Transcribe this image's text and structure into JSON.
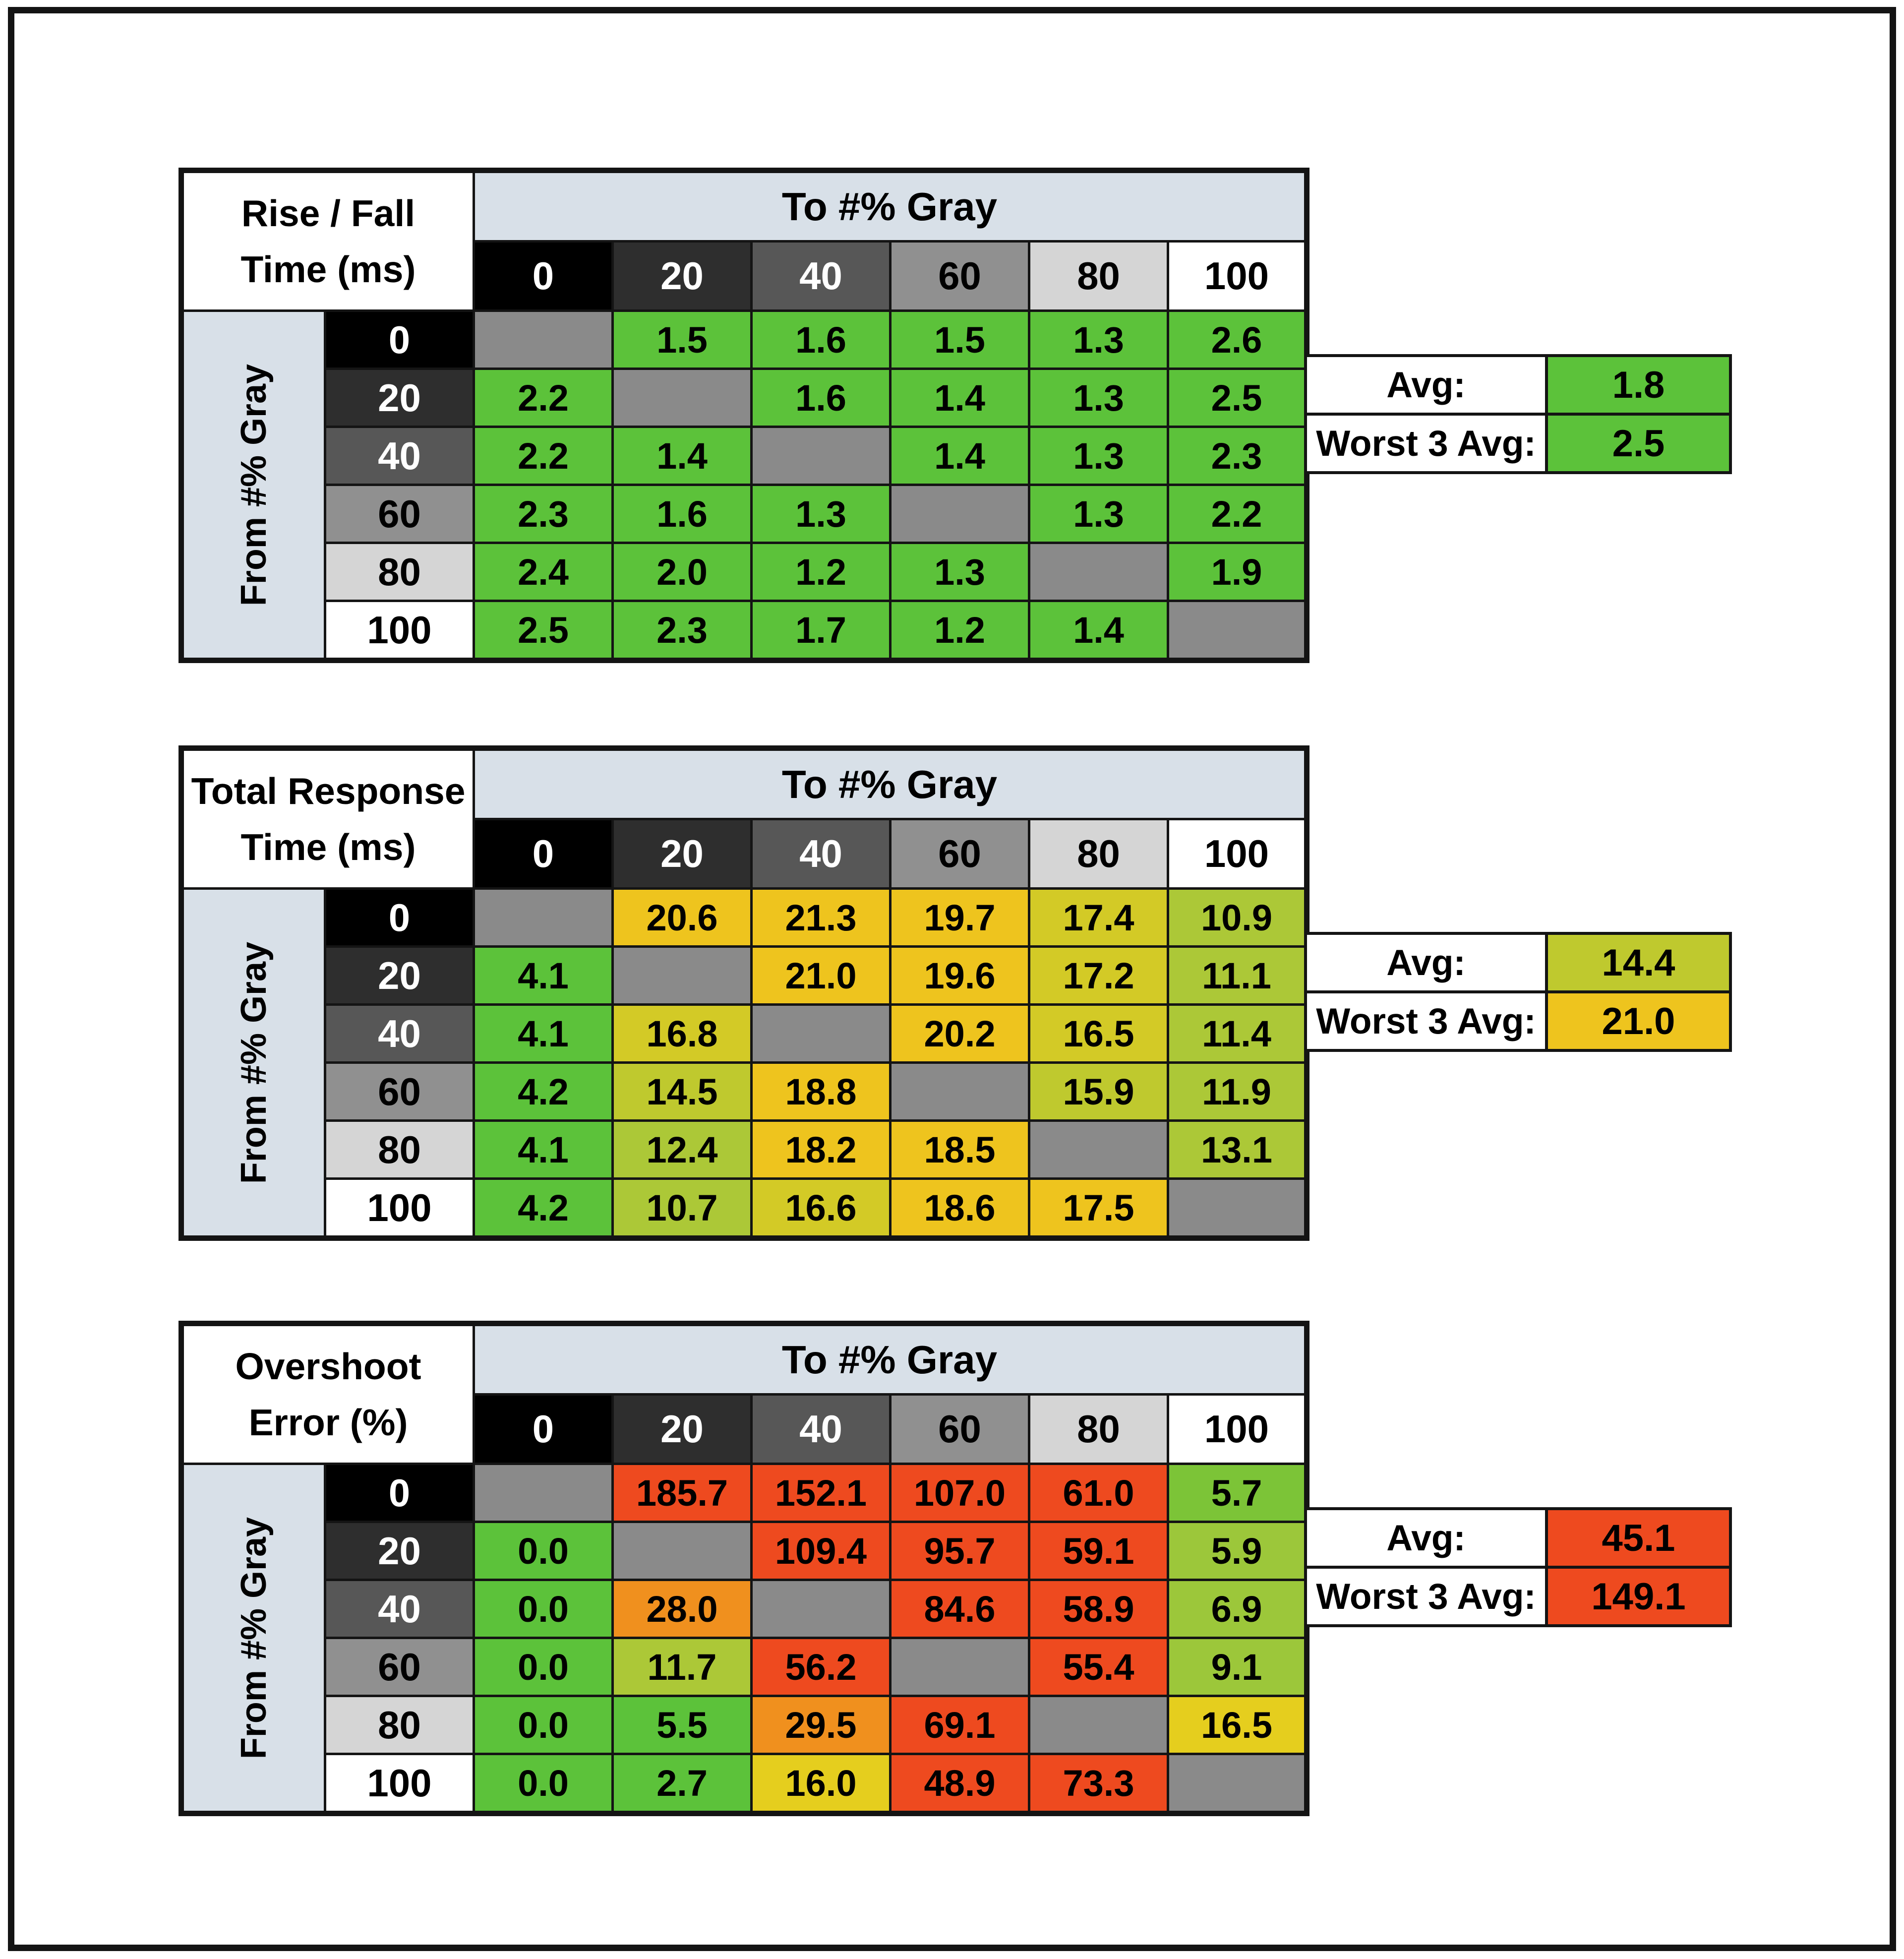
{
  "palette": {
    "green": "#5CC23A",
    "green_yellow": "#7CC437",
    "yellow_green": "#9CC73A",
    "lime": "#ACC837",
    "olive": "#BFC92E",
    "olive_yellow": "#D3CA26",
    "yellow": "#E5CE1E",
    "gold": "#EEC41E",
    "orange": "#F0901E",
    "red": "#EE4A1F",
    "gray": "#8A8A8A"
  },
  "frame_color": "#141414",
  "header_band_bg": "#D8E0E8",
  "gray_steps": [
    {
      "label": "0",
      "bg": "#000000",
      "fg": "#FFFFFF"
    },
    {
      "label": "20",
      "bg": "#2E2E2E",
      "fg": "#FFFFFF"
    },
    {
      "label": "40",
      "bg": "#575757",
      "fg": "#FFFFFF"
    },
    {
      "label": "60",
      "bg": "#909090",
      "fg": "#000000"
    },
    {
      "label": "80",
      "bg": "#D5D5D5",
      "fg": "#000000"
    },
    {
      "label": "100",
      "bg": "#FFFFFF",
      "fg": "#000000"
    }
  ],
  "chart_data": [
    {
      "type": "heatmap",
      "id": "rise-fall-time",
      "title": "Rise / Fall Time (ms)",
      "title_lines": [
        "Rise / Fall",
        "Time (ms)"
      ],
      "col_axis_label": "To #% Gray",
      "row_axis_label": "From #% Gray",
      "columns": [
        "0",
        "20",
        "40",
        "60",
        "80",
        "100"
      ],
      "rows": [
        "0",
        "20",
        "40",
        "60",
        "80",
        "100"
      ],
      "values": [
        [
          null,
          "1.5",
          "1.6",
          "1.5",
          "1.3",
          "2.6"
        ],
        [
          "2.2",
          null,
          "1.6",
          "1.4",
          "1.3",
          "2.5"
        ],
        [
          "2.2",
          "1.4",
          null,
          "1.4",
          "1.3",
          "2.3"
        ],
        [
          "2.3",
          "1.6",
          "1.3",
          null,
          "1.3",
          "2.2"
        ],
        [
          "2.4",
          "2.0",
          "1.2",
          "1.3",
          null,
          "1.9"
        ],
        [
          "2.5",
          "2.3",
          "1.7",
          "1.2",
          "1.4",
          null
        ]
      ],
      "colors": [
        [
          "gray",
          "green",
          "green",
          "green",
          "green",
          "green"
        ],
        [
          "green",
          "gray",
          "green",
          "green",
          "green",
          "green"
        ],
        [
          "green",
          "green",
          "gray",
          "green",
          "green",
          "green"
        ],
        [
          "green",
          "green",
          "green",
          "gray",
          "green",
          "green"
        ],
        [
          "green",
          "green",
          "green",
          "green",
          "gray",
          "green"
        ],
        [
          "green",
          "green",
          "green",
          "green",
          "green",
          "gray"
        ]
      ],
      "summary": {
        "avg_label": "Avg:",
        "avg": "1.8",
        "avg_color": "green",
        "worst_label": "Worst 3 Avg:",
        "worst": "2.5",
        "worst_color": "green"
      }
    },
    {
      "type": "heatmap",
      "id": "total-response-time",
      "title": "Total Response Time (ms)",
      "title_lines": [
        "Total Response",
        "Time (ms)"
      ],
      "col_axis_label": "To #% Gray",
      "row_axis_label": "From #% Gray",
      "columns": [
        "0",
        "20",
        "40",
        "60",
        "80",
        "100"
      ],
      "rows": [
        "0",
        "20",
        "40",
        "60",
        "80",
        "100"
      ],
      "values": [
        [
          null,
          "20.6",
          "21.3",
          "19.7",
          "17.4",
          "10.9"
        ],
        [
          "4.1",
          null,
          "21.0",
          "19.6",
          "17.2",
          "11.1"
        ],
        [
          "4.1",
          "16.8",
          null,
          "20.2",
          "16.5",
          "11.4"
        ],
        [
          "4.2",
          "14.5",
          "18.8",
          null,
          "15.9",
          "11.9"
        ],
        [
          "4.1",
          "12.4",
          "18.2",
          "18.5",
          null,
          "13.1"
        ],
        [
          "4.2",
          "10.7",
          "16.6",
          "18.6",
          "17.5",
          null
        ]
      ],
      "colors": [
        [
          "gray",
          "gold",
          "gold",
          "gold",
          "olive_yellow",
          "lime"
        ],
        [
          "green",
          "gray",
          "gold",
          "gold",
          "olive_yellow",
          "lime"
        ],
        [
          "green",
          "olive_yellow",
          "gray",
          "gold",
          "olive_yellow",
          "lime"
        ],
        [
          "green",
          "olive",
          "gold",
          "gray",
          "olive",
          "lime"
        ],
        [
          "green",
          "lime",
          "gold",
          "gold",
          "gray",
          "lime"
        ],
        [
          "green",
          "lime",
          "olive_yellow",
          "gold",
          "gold",
          "gray"
        ]
      ],
      "summary": {
        "avg_label": "Avg:",
        "avg": "14.4",
        "avg_color": "olive",
        "worst_label": "Worst 3 Avg:",
        "worst": "21.0",
        "worst_color": "gold"
      }
    },
    {
      "type": "heatmap",
      "id": "overshoot-error",
      "title": "Overshoot Error (%)",
      "title_lines": [
        "Overshoot",
        "Error (%)"
      ],
      "col_axis_label": "To #% Gray",
      "row_axis_label": "From #% Gray",
      "columns": [
        "0",
        "20",
        "40",
        "60",
        "80",
        "100"
      ],
      "rows": [
        "0",
        "20",
        "40",
        "60",
        "80",
        "100"
      ],
      "values": [
        [
          null,
          "185.7",
          "152.1",
          "107.0",
          "61.0",
          "5.7"
        ],
        [
          "0.0",
          null,
          "109.4",
          "95.7",
          "59.1",
          "5.9"
        ],
        [
          "0.0",
          "28.0",
          null,
          "84.6",
          "58.9",
          "6.9"
        ],
        [
          "0.0",
          "11.7",
          "56.2",
          null,
          "55.4",
          "9.1"
        ],
        [
          "0.0",
          "5.5",
          "29.5",
          "69.1",
          null,
          "16.5"
        ],
        [
          "0.0",
          "2.7",
          "16.0",
          "48.9",
          "73.3",
          null
        ]
      ],
      "colors": [
        [
          "gray",
          "red",
          "red",
          "red",
          "red",
          "green_yellow"
        ],
        [
          "green",
          "gray",
          "red",
          "red",
          "red",
          "yellow_green"
        ],
        [
          "green",
          "orange",
          "gray",
          "red",
          "red",
          "yellow_green"
        ],
        [
          "green",
          "lime",
          "red",
          "gray",
          "red",
          "yellow_green"
        ],
        [
          "green",
          "green",
          "orange",
          "red",
          "gray",
          "yellow"
        ],
        [
          "green",
          "green",
          "yellow",
          "red",
          "red",
          "gray"
        ]
      ],
      "summary": {
        "avg_label": "Avg:",
        "avg": "45.1",
        "avg_color": "red",
        "worst_label": "Worst 3 Avg:",
        "worst": "149.1",
        "worst_color": "red"
      }
    }
  ]
}
